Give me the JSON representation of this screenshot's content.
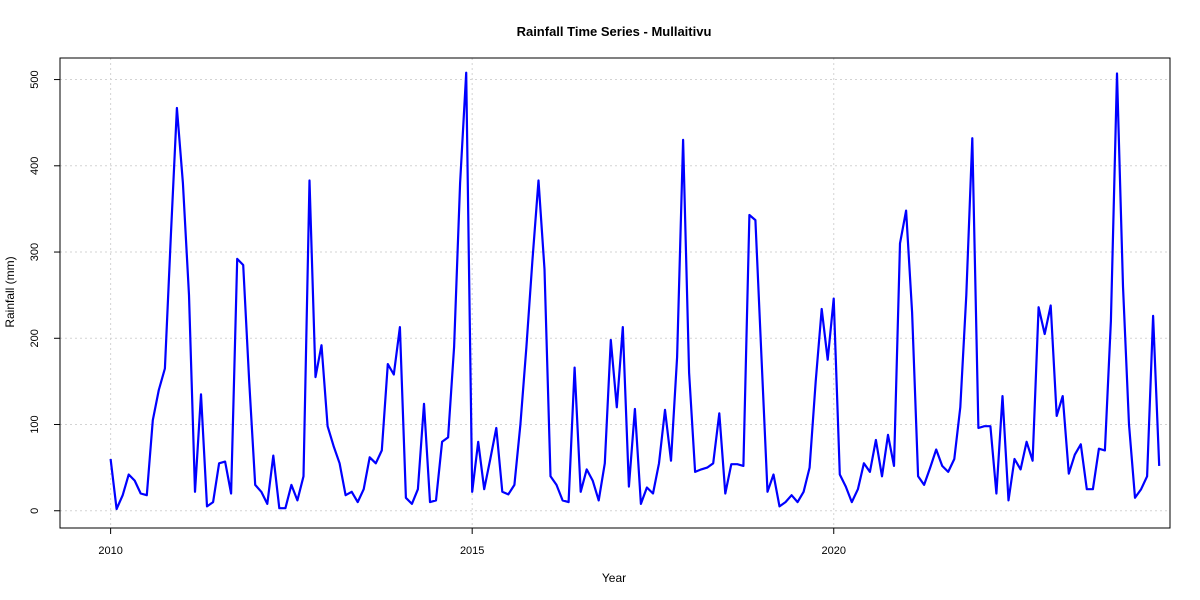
{
  "chart_data": {
    "type": "line",
    "title": "Rainfall Time Series - Mullaitivu",
    "xlabel": "Year",
    "ylabel": "Rainfall (mm)",
    "xlim": [
      2009.3,
      2024.65
    ],
    "ylim": [
      -20,
      525
    ],
    "x_ticks": [
      2010,
      2015,
      2020
    ],
    "y_ticks": [
      0,
      100,
      200,
      300,
      400,
      500
    ],
    "grid": true,
    "series": [
      {
        "color": "#0000ff",
        "start_year": 2010,
        "interval": "monthly",
        "values": [
          60,
          2,
          18,
          42,
          35,
          20,
          18,
          105,
          140,
          165,
          320,
          467,
          380,
          250,
          22,
          135,
          5,
          10,
          55,
          57,
          20,
          292,
          285,
          150,
          30,
          22,
          8,
          64,
          3,
          3,
          30,
          12,
          40,
          383,
          155,
          192,
          98,
          75,
          55,
          18,
          22,
          10,
          25,
          62,
          55,
          70,
          170,
          158,
          213,
          15,
          8,
          25,
          124,
          10,
          12,
          80,
          85,
          190,
          380,
          508,
          22,
          80,
          25,
          60,
          96,
          22,
          19,
          30,
          100,
          190,
          290,
          383,
          280,
          40,
          30,
          12,
          10,
          166,
          22,
          48,
          35,
          12,
          55,
          198,
          120,
          213,
          28,
          118,
          8,
          27,
          20,
          55,
          117,
          58,
          178,
          430,
          160,
          45,
          48,
          50,
          55,
          113,
          20,
          54,
          54,
          52,
          343,
          337,
          180,
          22,
          42,
          5,
          10,
          18,
          10,
          22,
          50,
          150,
          234,
          175,
          246,
          42,
          28,
          10,
          25,
          55,
          45,
          82,
          40,
          88,
          52,
          310,
          348,
          230,
          40,
          30,
          50,
          71,
          52,
          45,
          60,
          120,
          250,
          432,
          96,
          98,
          98,
          20,
          133,
          12,
          60,
          48,
          80,
          58,
          236,
          205,
          238,
          110,
          133,
          43,
          65,
          77,
          25,
          25,
          72,
          70,
          220,
          507,
          260,
          100,
          15,
          25,
          40,
          226,
          52
        ]
      }
    ]
  }
}
